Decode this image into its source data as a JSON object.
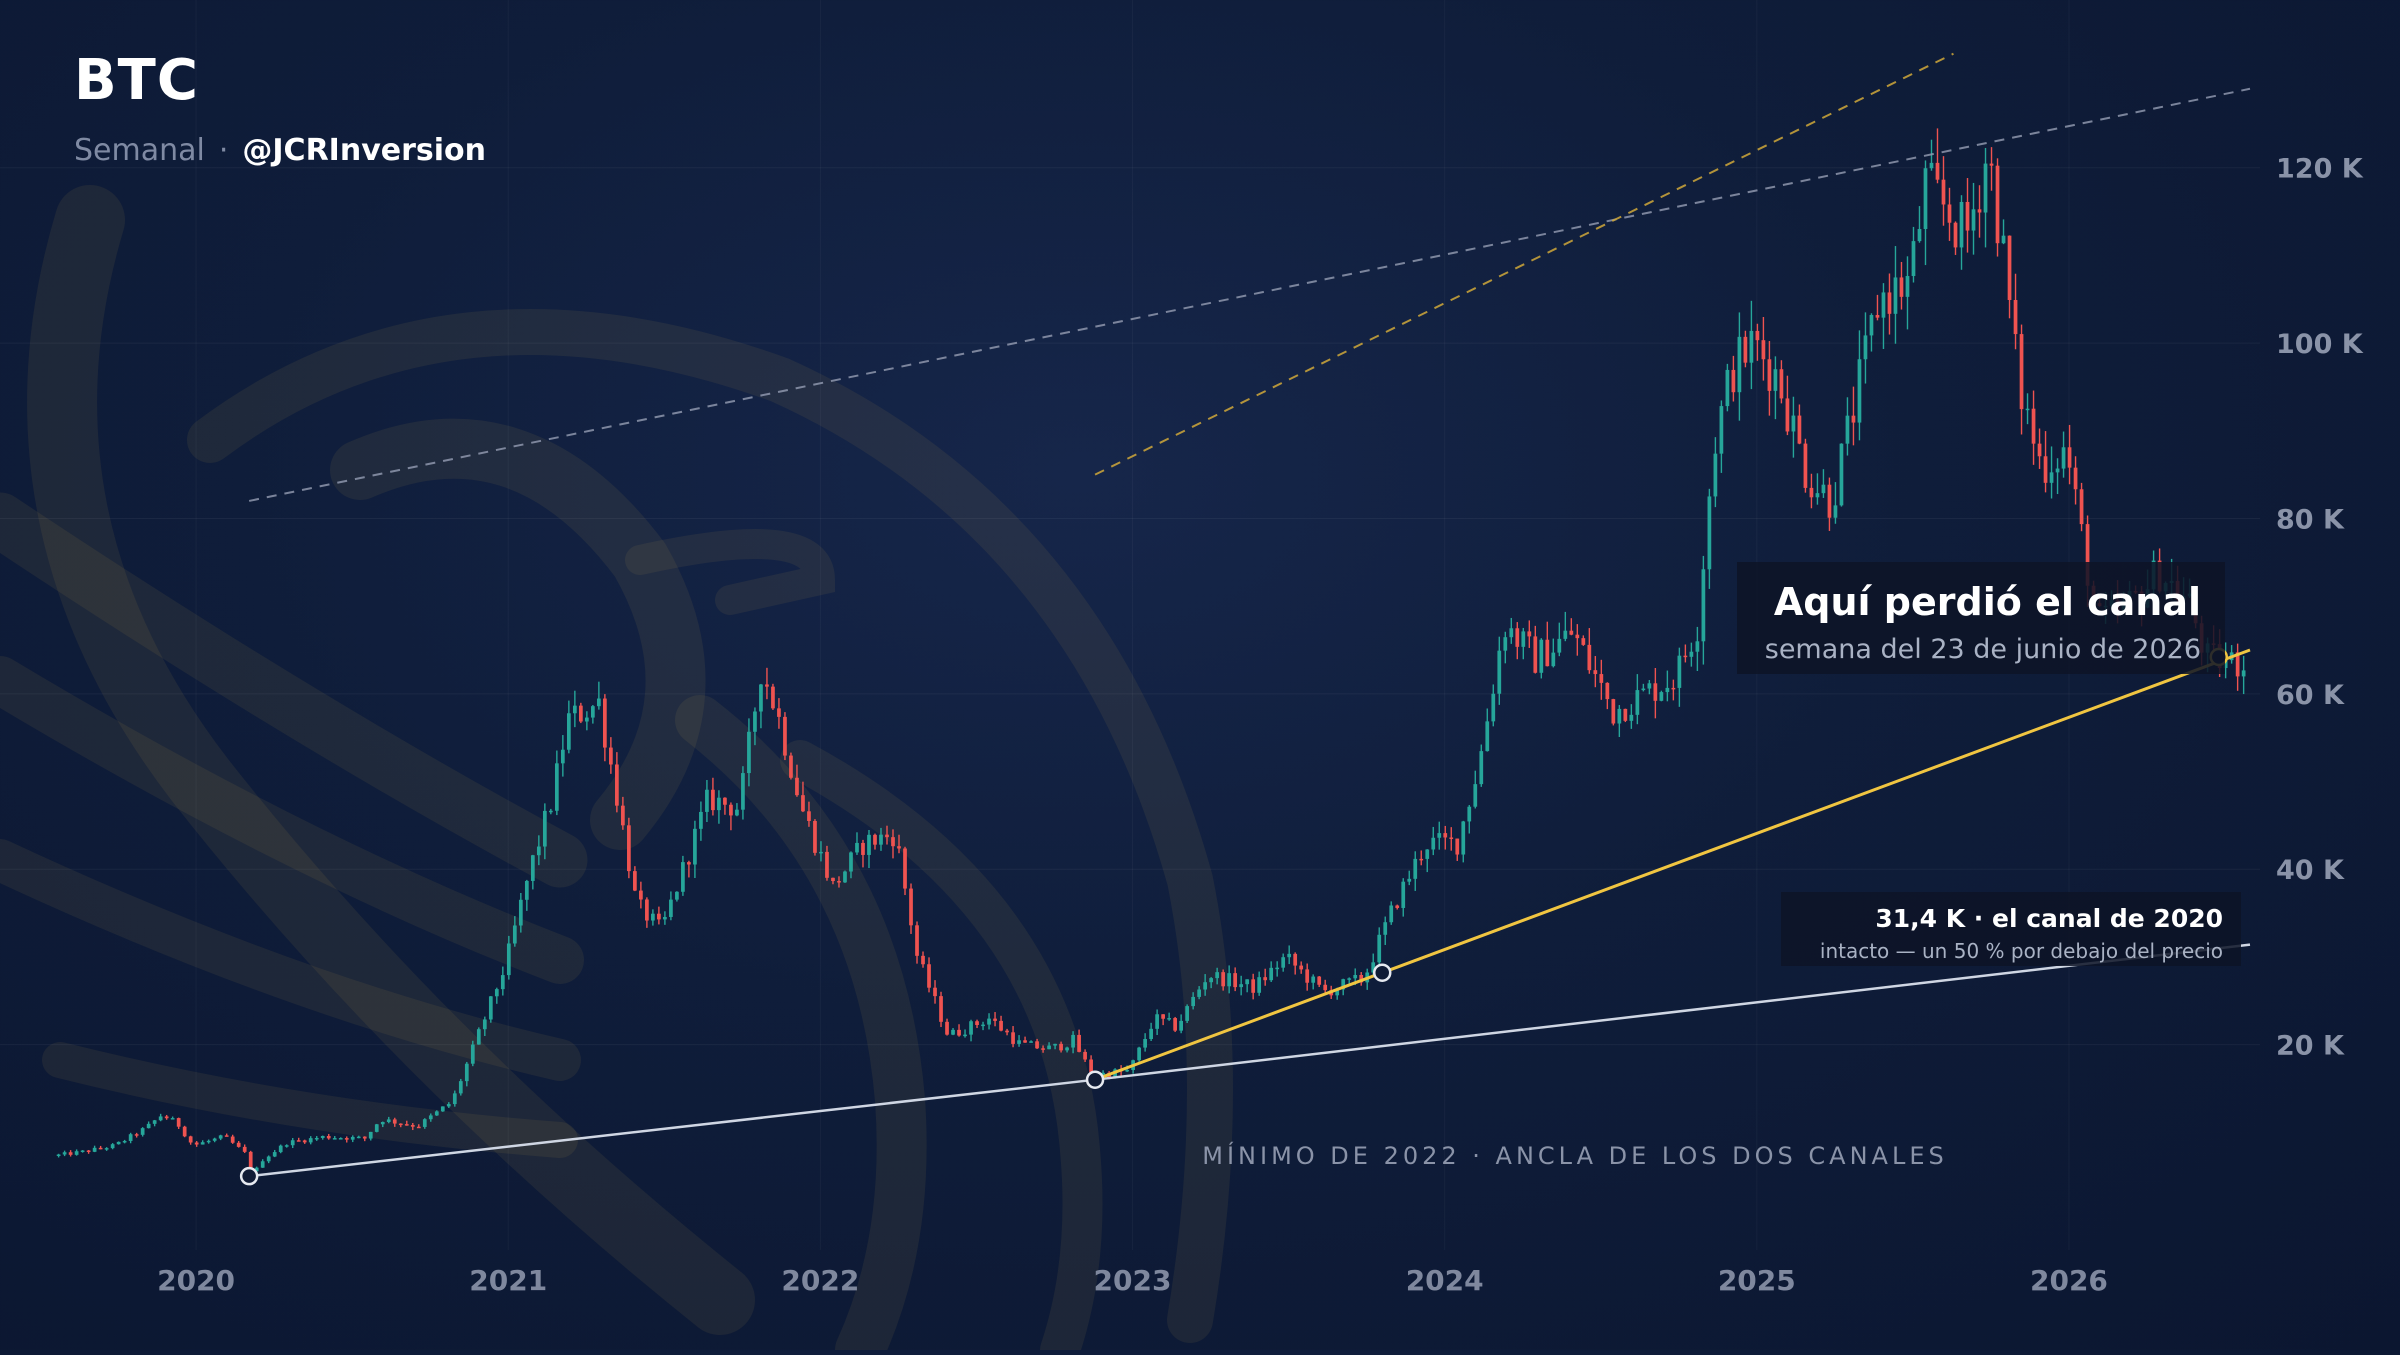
{
  "header": {
    "title": "BTC",
    "timeframe": "Semanal",
    "separator": "·",
    "handle": "@JCRInversion"
  },
  "colors": {
    "up": "#26a69a",
    "down": "#ef5350",
    "channel_2022": "#f0c541",
    "channel_2020": "#cfd6e3",
    "dashed_upper": "#8e96ad",
    "dashed_channel_2022_upper": "#d0a83a"
  },
  "callouts": {
    "main_title": "Aquí perdió el canal",
    "main_sub": "semana del 23 de junio de 2026",
    "small_title": "31,4 K · el canal de 2020",
    "small_sub": "intacto — un 50 % por debajo del precio",
    "anchor_label": "MÍNIMO DE 2022 · ANCLA DE LOS DOS CANALES"
  },
  "chart_data": {
    "type": "candlestick",
    "title": "BTC",
    "timeframe": "Semanal",
    "y_axis": {
      "ylim": [
        0,
        130000
      ],
      "ticks": [
        20000,
        40000,
        60000,
        80000,
        100000,
        120000
      ],
      "tick_labels": [
        "20 K",
        "40 K",
        "60 K",
        "80 K",
        "100 K",
        "120 K"
      ]
    },
    "x_axis": {
      "xlim": [
        2019.5,
        2026.58
      ],
      "ticks": [
        2020,
        2021,
        2022,
        2023,
        2024,
        2025,
        2026
      ],
      "tick_labels": [
        "2020",
        "2021",
        "2022",
        "2023",
        "2024",
        "2025",
        "2026"
      ]
    },
    "grid": true,
    "price_keypoints": [
      [
        2019.55,
        7300
      ],
      [
        2019.65,
        7800
      ],
      [
        2019.75,
        8500
      ],
      [
        2019.85,
        10500
      ],
      [
        2019.9,
        12000
      ],
      [
        2019.95,
        11000
      ],
      [
        2020.0,
        8500
      ],
      [
        2020.1,
        9500
      ],
      [
        2020.17,
        7500
      ],
      [
        2020.19,
        5000
      ],
      [
        2020.22,
        6800
      ],
      [
        2020.3,
        8800
      ],
      [
        2020.42,
        9500
      ],
      [
        2020.55,
        9300
      ],
      [
        2020.6,
        11500
      ],
      [
        2020.72,
        10700
      ],
      [
        2020.83,
        13500
      ],
      [
        2020.88,
        18000
      ],
      [
        2021.0,
        29000
      ],
      [
        2021.08,
        40000
      ],
      [
        2021.15,
        48000
      ],
      [
        2021.2,
        57000
      ],
      [
        2021.3,
        59000
      ],
      [
        2021.36,
        48000
      ],
      [
        2021.42,
        36000
      ],
      [
        2021.5,
        33000
      ],
      [
        2021.58,
        41000
      ],
      [
        2021.65,
        48000
      ],
      [
        2021.75,
        47000
      ],
      [
        2021.82,
        63000
      ],
      [
        2021.87,
        58000
      ],
      [
        2021.95,
        47000
      ],
      [
        2022.05,
        38000
      ],
      [
        2022.15,
        43000
      ],
      [
        2022.25,
        44000
      ],
      [
        2022.32,
        30000
      ],
      [
        2022.42,
        21000
      ],
      [
        2022.55,
        23000
      ],
      [
        2022.65,
        20000
      ],
      [
        2022.75,
        19500
      ],
      [
        2022.82,
        20500
      ],
      [
        2022.88,
        16500
      ],
      [
        2023.0,
        17000
      ],
      [
        2023.08,
        23000
      ],
      [
        2023.15,
        22000
      ],
      [
        2023.25,
        28000
      ],
      [
        2023.4,
        26500
      ],
      [
        2023.5,
        30000
      ],
      [
        2023.62,
        26000
      ],
      [
        2023.75,
        27500
      ],
      [
        2023.85,
        36000
      ],
      [
        2023.95,
        43000
      ],
      [
        2024.05,
        43000
      ],
      [
        2024.12,
        52000
      ],
      [
        2024.2,
        68000
      ],
      [
        2024.3,
        64000
      ],
      [
        2024.42,
        67000
      ],
      [
        2024.55,
        58000
      ],
      [
        2024.65,
        60000
      ],
      [
        2024.75,
        62000
      ],
      [
        2024.82,
        68000
      ],
      [
        2024.87,
        88000
      ],
      [
        2024.93,
        97000
      ],
      [
        2025.0,
        100000
      ],
      [
        2025.08,
        96000
      ],
      [
        2025.17,
        85000
      ],
      [
        2025.25,
        82000
      ],
      [
        2025.33,
        94000
      ],
      [
        2025.4,
        105000
      ],
      [
        2025.5,
        107000
      ],
      [
        2025.55,
        118000
      ],
      [
        2025.62,
        115000
      ],
      [
        2025.68,
        112000
      ],
      [
        2025.75,
        122000
      ],
      [
        2025.8,
        110000
      ],
      [
        2025.85,
        95000
      ],
      [
        2025.92,
        86000
      ],
      [
        2026.0,
        88000
      ],
      [
        2026.05,
        78000
      ],
      [
        2026.1,
        68000
      ],
      [
        2026.2,
        70000
      ],
      [
        2026.3,
        74000
      ],
      [
        2026.4,
        70000
      ],
      [
        2026.45,
        64000
      ],
      [
        2026.55,
        63500
      ]
    ],
    "trend_lines": [
      {
        "name": "canal de 2020",
        "points": [
          [
            2020.17,
            5000
          ],
          [
            2022.88,
            16000
          ],
          [
            2026.58,
            31400
          ]
        ]
      },
      {
        "name": "canal de 2022",
        "points": [
          [
            2022.88,
            16000
          ],
          [
            2023.8,
            28200
          ],
          [
            2026.58,
            65000
          ]
        ]
      }
    ],
    "dashed_lines": [
      {
        "points": [
          [
            2020.17,
            82000
          ],
          [
            2026.58,
            129000
          ]
        ]
      },
      {
        "points": [
          [
            2022.88,
            85000
          ],
          [
            2025.63,
            133000
          ]
        ]
      }
    ],
    "markers": [
      {
        "date": 2020.17,
        "value": 5000,
        "color": "white"
      },
      {
        "date": 2022.88,
        "value": 16000,
        "color": "white"
      },
      {
        "date": 2023.8,
        "value": 28200,
        "color": "white"
      },
      {
        "date": 2026.48,
        "value": 64200,
        "color": "yellow"
      }
    ]
  }
}
